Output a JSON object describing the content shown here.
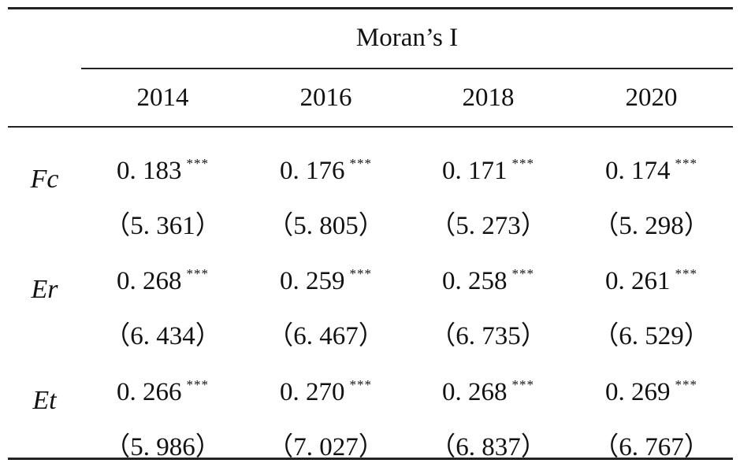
{
  "table": {
    "group_header": "Moran’s I",
    "years": [
      "2014",
      "2016",
      "2018",
      "2020"
    ],
    "rows": [
      {
        "label": "Fc",
        "cells": [
          {
            "coef": "0. 183",
            "stars": "***",
            "tstat": "（5. 361）"
          },
          {
            "coef": "0. 176",
            "stars": "***",
            "tstat": "（5. 805）"
          },
          {
            "coef": "0. 171",
            "stars": "***",
            "tstat": "（5. 273）"
          },
          {
            "coef": "0. 174",
            "stars": "***",
            "tstat": "（5. 298）"
          }
        ]
      },
      {
        "label": "Er",
        "cells": [
          {
            "coef": "0. 268",
            "stars": "***",
            "tstat": "（6. 434）"
          },
          {
            "coef": "0. 259",
            "stars": "***",
            "tstat": "（6. 467）"
          },
          {
            "coef": "0. 258",
            "stars": "***",
            "tstat": "（6. 735）"
          },
          {
            "coef": "0. 261",
            "stars": "***",
            "tstat": "（6. 529）"
          }
        ]
      },
      {
        "label": "Et",
        "cells": [
          {
            "coef": "0. 266",
            "stars": "***",
            "tstat": "（5. 986）"
          },
          {
            "coef": "0. 270",
            "stars": "***",
            "tstat": "（7. 027）"
          },
          {
            "coef": "0. 268",
            "stars": "***",
            "tstat": "（6. 837）"
          },
          {
            "coef": "0. 269",
            "stars": "***",
            "tstat": "（6. 767）"
          }
        ]
      }
    ]
  }
}
